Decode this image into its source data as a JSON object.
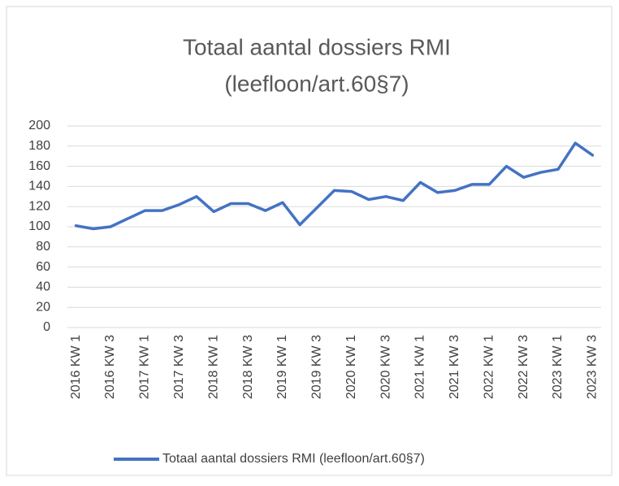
{
  "chart_data": {
    "type": "line",
    "title": [
      "Totaal aantal dossiers RMI",
      "(leefloon/art.60§7)"
    ],
    "categories": [
      "2016 KW 1",
      null,
      "2016 KW 3",
      null,
      "2017 KW 1",
      null,
      "2017 KW 3",
      null,
      "2018 KW 1",
      null,
      "2018 KW 3",
      null,
      "2019 KW 1",
      null,
      "2019 KW 3",
      null,
      "2020 KW 1",
      null,
      "2020 KW 3",
      null,
      "2021 KW 1",
      null,
      "2021 KW 3",
      null,
      "2022 KW 1",
      null,
      "2022 KW 3",
      null,
      "2023 KW 1",
      null,
      "2023 KW 3"
    ],
    "series": [
      {
        "name": "Totaal aantal dossiers RMI (leefloon/art.60§7)",
        "color": "#4472c4",
        "values": [
          101,
          98,
          100,
          108,
          116,
          116,
          122,
          130,
          115,
          123,
          123,
          116,
          124,
          102,
          119,
          136,
          135,
          127,
          130,
          126,
          144,
          134,
          136,
          142,
          142,
          160,
          149,
          154,
          157,
          183,
          171
        ]
      }
    ],
    "ylim": [
      0,
      200
    ],
    "yticks": [
      0,
      20,
      40,
      60,
      80,
      100,
      120,
      140,
      160,
      180,
      200
    ],
    "grid": true,
    "legend": "bottom"
  }
}
